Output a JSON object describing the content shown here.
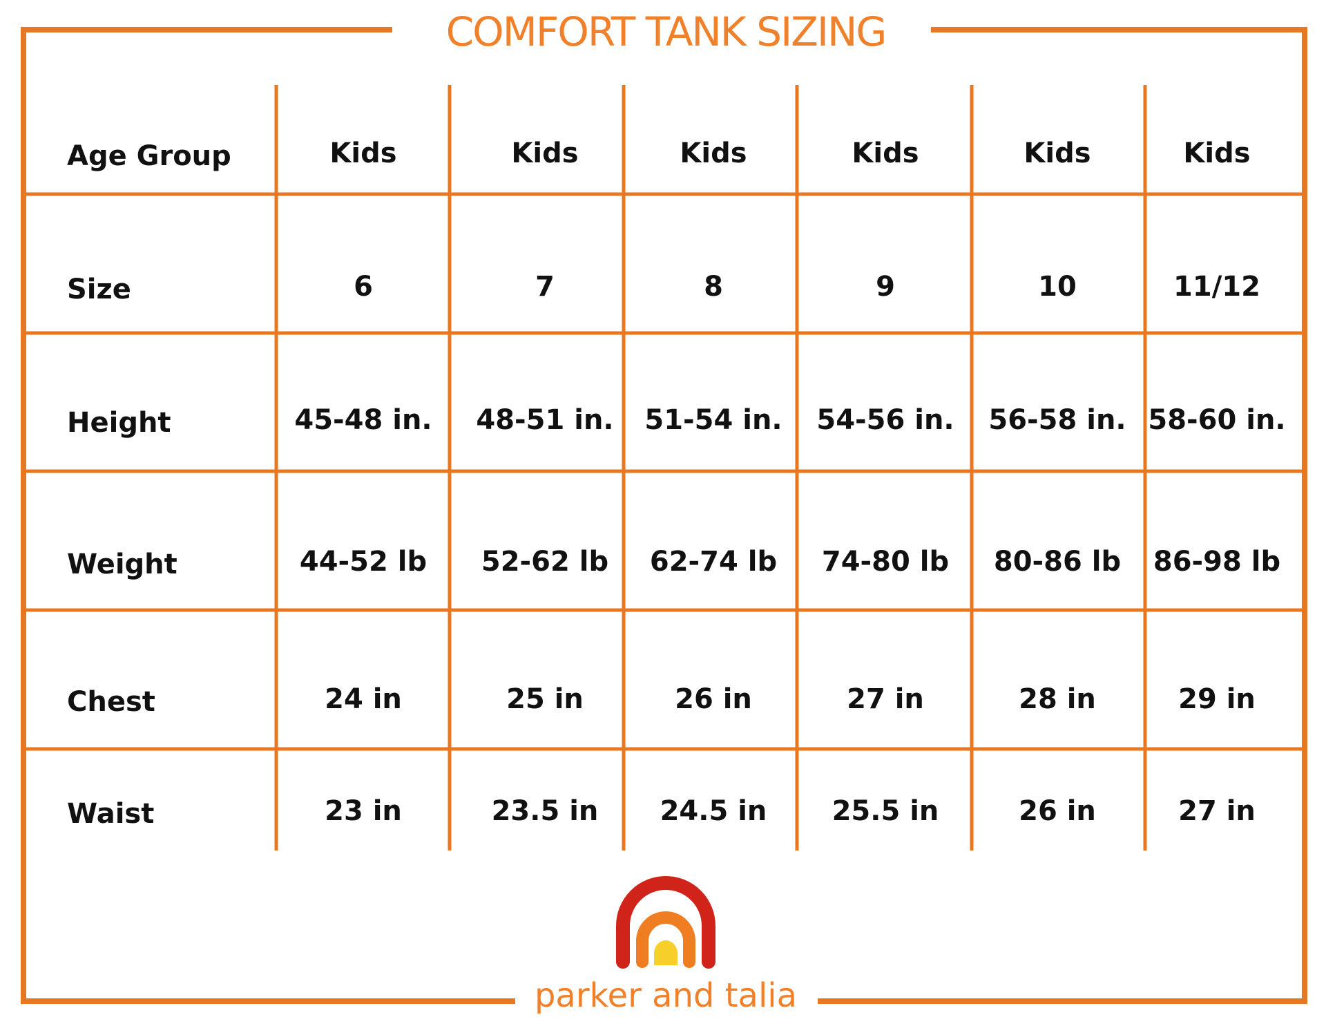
{
  "header": {
    "title": "COMFORT TANK SIZING"
  },
  "table": {
    "rows": [
      [
        "Age Group",
        "Kids",
        "Kids",
        "Kids",
        "Kids",
        "Kids",
        "Kids"
      ],
      [
        "Size",
        "6",
        "7",
        "8",
        "9",
        "10",
        "11/12"
      ],
      [
        "Height",
        "45-48 in.",
        "48-51 in.",
        "51-54 in.",
        "54-56 in.",
        "56-58 in.",
        "58-60 in."
      ],
      [
        "Weight",
        "44-52 lb",
        "52-62 lb",
        "62-74 lb",
        "74-80 lb",
        "80-86 lb",
        "86-98 lb"
      ],
      [
        "Chest",
        "24 in",
        "25 in",
        "26 in",
        "27 in",
        "28 in",
        "29 in"
      ],
      [
        "Waist",
        "23 in",
        "23.5 in",
        "24.5 in",
        "25.5 in",
        "26 in",
        "27 in"
      ]
    ]
  },
  "footer": {
    "brand": "parker and talia"
  }
}
